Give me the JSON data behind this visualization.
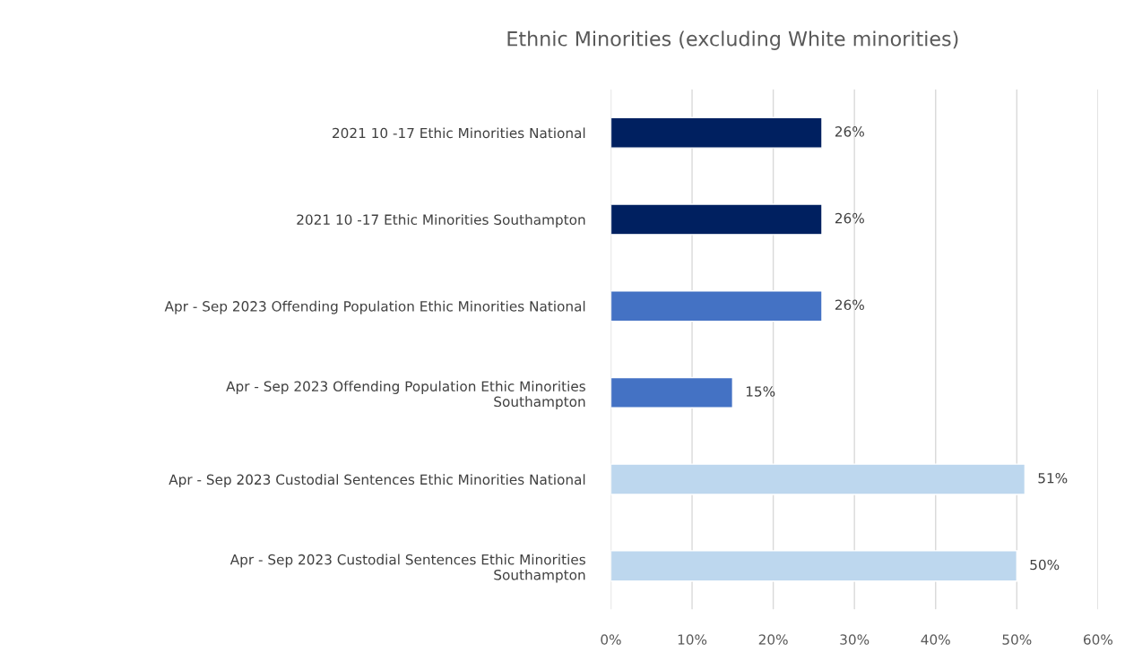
{
  "chart_data": {
    "type": "bar",
    "orientation": "horizontal",
    "title": "Ethnic Minorities (excluding White minorities)",
    "categories": [
      "2021 10 -17 Ethic Minorities National",
      "2021 10 -17 Ethic Minorities Southampton",
      "Apr - Sep 2023 Offending Population Ethic Minorities National",
      "Apr - Sep 2023 Offending Population Ethic Minorities\nSouthampton",
      "Apr - Sep 2023 Custodial Sentences Ethic Minorities National",
      "Apr - Sep 2023 Custodial Sentences Ethic Minorities\nSouthampton"
    ],
    "values": [
      26,
      26,
      26,
      15,
      51,
      50
    ],
    "colors": [
      "#002060",
      "#002060",
      "#4472c4",
      "#4472c4",
      "#bdd7ee",
      "#bdd7ee"
    ],
    "value_labels": [
      "26%",
      "26%",
      "26%",
      "15%",
      "51%",
      "50%"
    ],
    "xlim": [
      0,
      60
    ],
    "xticks": [
      {
        "value": 0,
        "label": "0%"
      },
      {
        "value": 10,
        "label": "10%"
      },
      {
        "value": 20,
        "label": "20%"
      },
      {
        "value": 30,
        "label": "30%"
      },
      {
        "value": 40,
        "label": "40%"
      },
      {
        "value": 50,
        "label": "50%"
      },
      {
        "value": 60,
        "label": "60%"
      }
    ],
    "grid": "x"
  }
}
